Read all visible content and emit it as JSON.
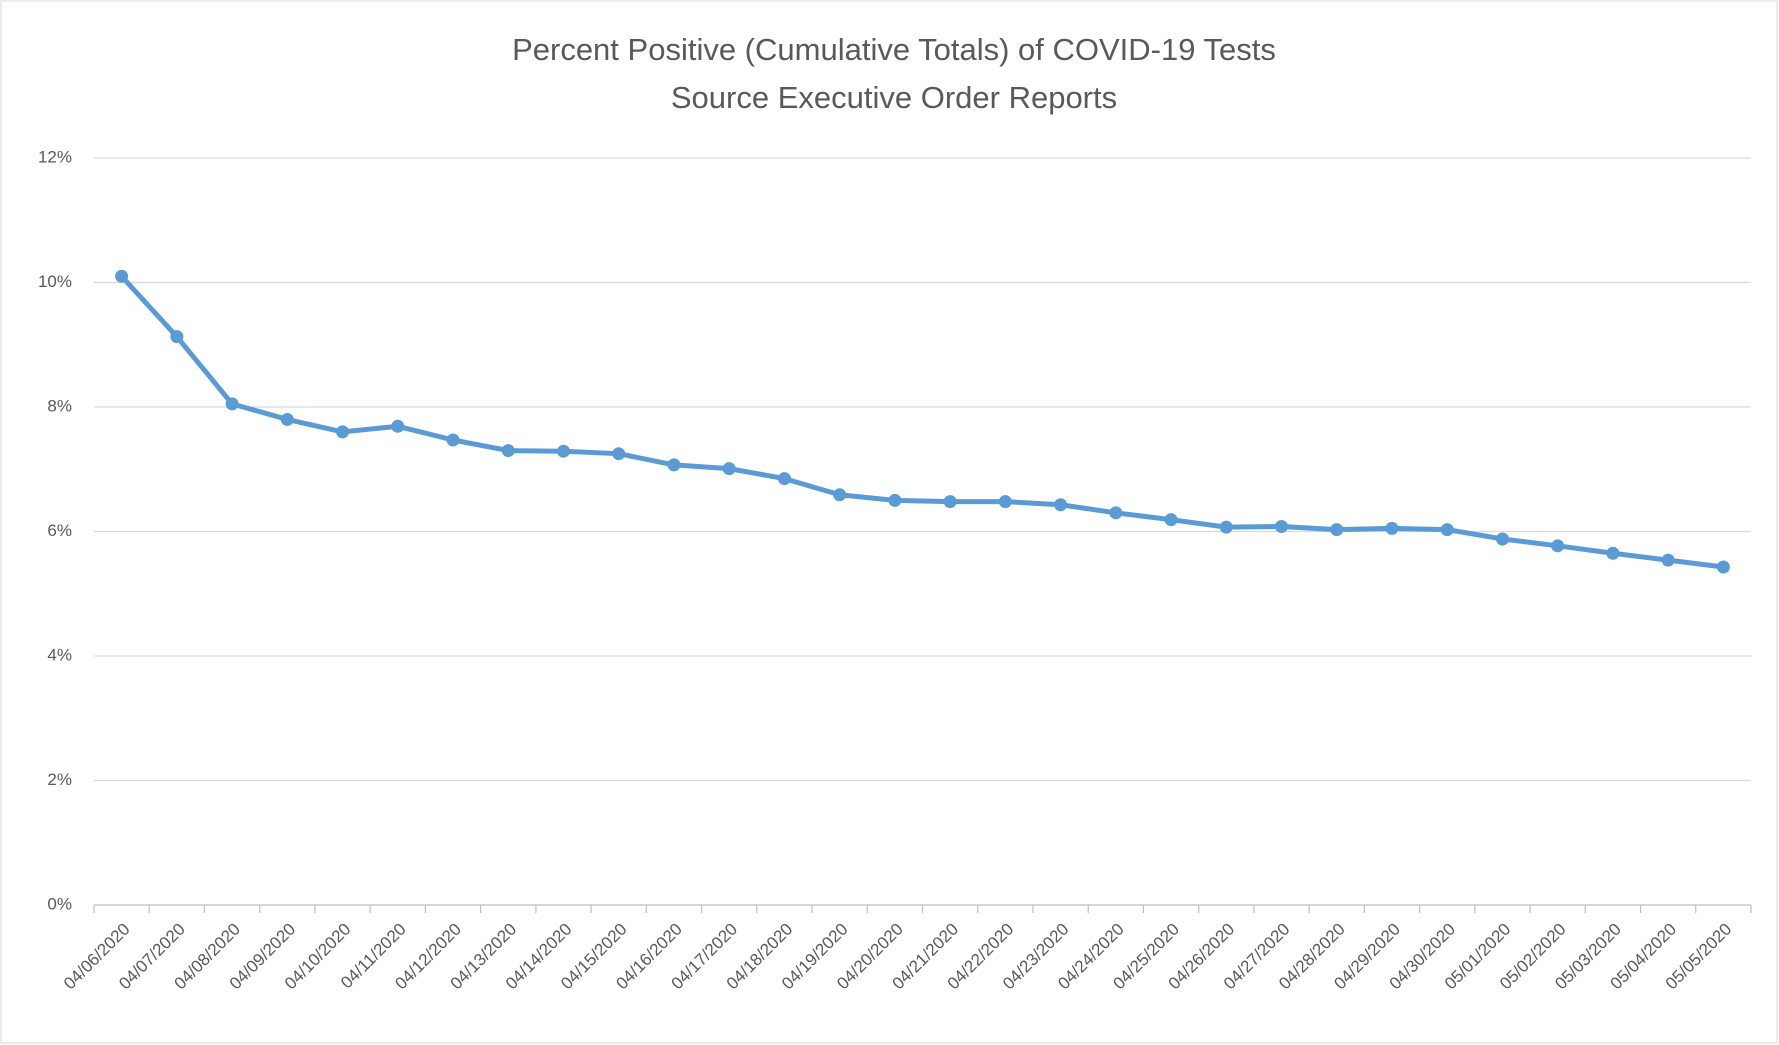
{
  "chart_data": {
    "type": "line",
    "title": "Percent Positive (Cumulative Totals) of COVID-19 Tests",
    "subtitle": "Source Executive Order Reports",
    "categories": [
      "04/06/2020",
      "04/07/2020",
      "04/08/2020",
      "04/09/2020",
      "04/10/2020",
      "04/11/2020",
      "04/12/2020",
      "04/13/2020",
      "04/14/2020",
      "04/15/2020",
      "04/16/2020",
      "04/17/2020",
      "04/18/2020",
      "04/19/2020",
      "04/20/2020",
      "04/21/2020",
      "04/22/2020",
      "04/23/2020",
      "04/24/2020",
      "04/25/2020",
      "04/26/2020",
      "04/27/2020",
      "04/28/2020",
      "04/29/2020",
      "04/30/2020",
      "05/01/2020",
      "05/02/2020",
      "05/03/2020",
      "05/04/2020",
      "05/05/2020"
    ],
    "values": [
      10.1,
      9.13,
      8.05,
      7.8,
      7.6,
      7.69,
      7.47,
      7.3,
      7.29,
      7.25,
      7.07,
      7.01,
      6.85,
      6.59,
      6.5,
      6.48,
      6.48,
      6.43,
      6.3,
      6.19,
      6.07,
      6.08,
      6.03,
      6.05,
      6.03,
      5.88,
      5.77,
      5.65,
      5.54,
      5.43
    ],
    "color": "#5b9bd5",
    "ylim": [
      0,
      12
    ],
    "yticks": [
      {
        "value": 0,
        "label": "0%"
      },
      {
        "value": 2,
        "label": "2%"
      },
      {
        "value": 4,
        "label": "4%"
      },
      {
        "value": 6,
        "label": "6%"
      },
      {
        "value": 8,
        "label": "8%"
      },
      {
        "value": 10,
        "label": "10%"
      },
      {
        "value": 12,
        "label": "12%"
      }
    ],
    "grid": true
  }
}
